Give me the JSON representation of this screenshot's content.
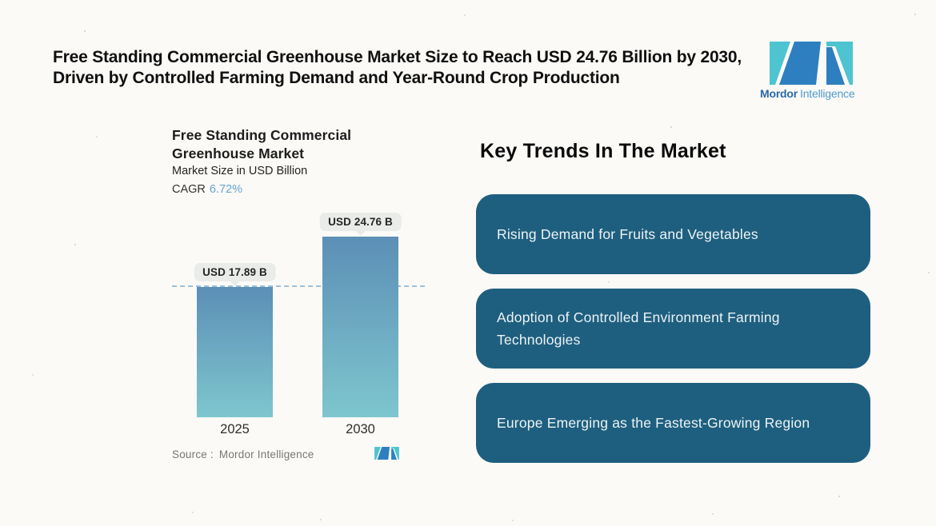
{
  "page": {
    "background": "#FBFAF6"
  },
  "header": {
    "title_line1": "Free Standing Commercial Greenhouse Market Size to Reach USD 24.76 Billion by 2030,",
    "title_line2": "Driven by Controlled Farming Demand and Year-Round Crop Production"
  },
  "logo": {
    "brand_bold": "Mordor",
    "brand_light": "Intelligence",
    "teal": "#4EC4D1",
    "blue": "#2E7FBF"
  },
  "chart": {
    "title_line1": "Free Standing Commercial",
    "title_line2": "Greenhouse Market",
    "subtitle": "Market Size in USD Billion",
    "cagr_label": "CAGR",
    "cagr_value": "6.72%",
    "source_label": "Source :",
    "source_value": "Mordor Intelligence"
  },
  "chart_data": {
    "type": "bar",
    "title": "Free Standing Commercial Greenhouse Market",
    "subtitle": "Market Size in USD Billion",
    "cagr": "6.72%",
    "categories": [
      "2025",
      "2030"
    ],
    "values": [
      17.89,
      24.76
    ],
    "value_labels": [
      "USD 17.89 B",
      "USD 24.76 B"
    ],
    "unit": "USD Billion",
    "ylim": [
      0,
      26
    ],
    "reference_line": 17.89,
    "reference_line_style": "dashed",
    "reference_line_color": "#9CC0DA",
    "bar_gradient": [
      "#5C8FB6",
      "#7EC6CE"
    ],
    "label_chip_bg": "#E9ECE8",
    "grid": false,
    "legend": false
  },
  "trends": {
    "heading": "Key Trends In The Market",
    "box_color": "#1E5F7F",
    "items": [
      {
        "label": "Rising Demand for Fruits and Vegetables"
      },
      {
        "label": "Adoption of Controlled Environment Farming Technologies"
      },
      {
        "label": "Europe Emerging as the Fastest-Growing Region"
      }
    ]
  }
}
